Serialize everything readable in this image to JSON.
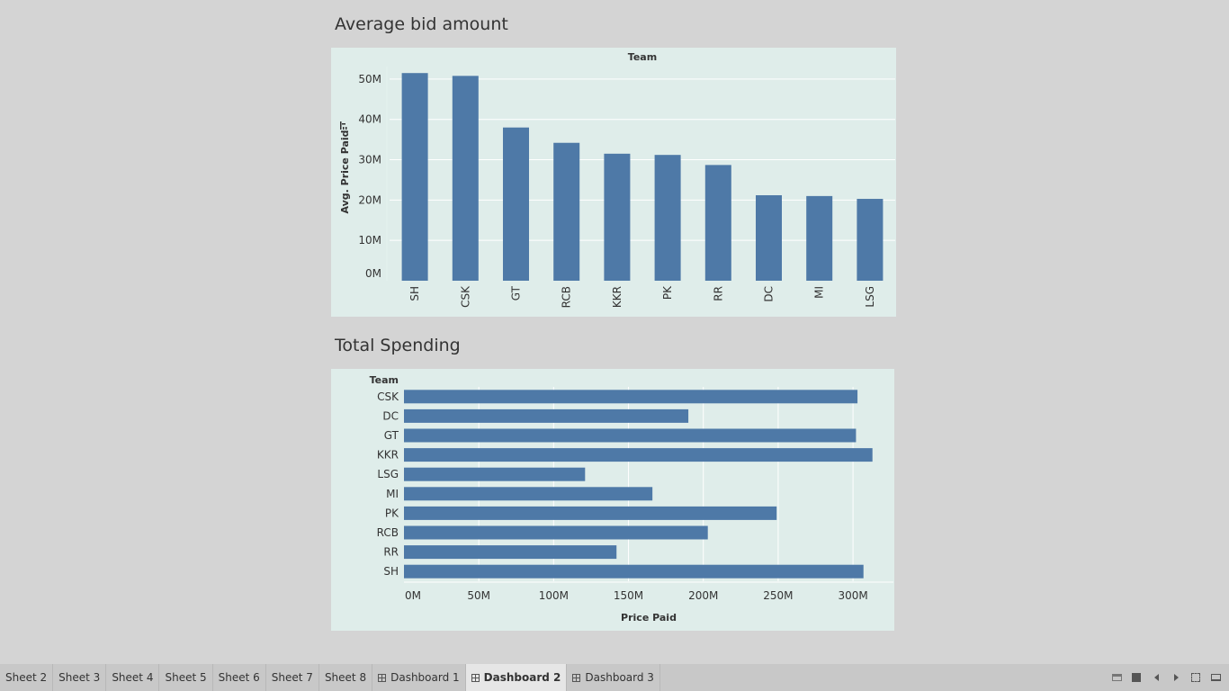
{
  "dashboard": {
    "titles": [
      "Average bid amount",
      "Total Spending"
    ]
  },
  "chart_data": [
    {
      "type": "bar",
      "orientation": "vertical",
      "title": "Average bid amount",
      "header": "Team",
      "ylabel": "Avg. Price Paid",
      "categories": [
        "SH",
        "CSK",
        "GT",
        "RCB",
        "KKR",
        "PK",
        "RR",
        "DC",
        "MI",
        "LSG"
      ],
      "values": [
        51.5,
        50.8,
        38.0,
        34.2,
        31.5,
        31.2,
        28.7,
        21.2,
        21.0,
        20.3
      ],
      "yticks": [
        "0M",
        "10M",
        "20M",
        "30M",
        "40M",
        "50M"
      ],
      "ylim": [
        0,
        54
      ],
      "grid": true,
      "bar_color": "#4e79a7"
    },
    {
      "type": "bar",
      "orientation": "horizontal",
      "title": "Total Spending",
      "header": "Team",
      "xlabel": "Price Paid",
      "categories": [
        "CSK",
        "DC",
        "GT",
        "KKR",
        "LSG",
        "MI",
        "PK",
        "RCB",
        "RR",
        "SH"
      ],
      "values": [
        303,
        190,
        302,
        313,
        121,
        166,
        249,
        203,
        142,
        307
      ],
      "xticks": [
        "0M",
        "50M",
        "100M",
        "150M",
        "200M",
        "250M",
        "300M"
      ],
      "xlim": [
        0,
        327
      ],
      "grid": true,
      "bar_color": "#4e79a7"
    }
  ],
  "tabs": [
    {
      "label": "Sheet 2",
      "type": "sheet",
      "active": false
    },
    {
      "label": "Sheet 3",
      "type": "sheet",
      "active": false
    },
    {
      "label": "Sheet 4",
      "type": "sheet",
      "active": false
    },
    {
      "label": "Sheet 5",
      "type": "sheet",
      "active": false
    },
    {
      "label": "Sheet 6",
      "type": "sheet",
      "active": false
    },
    {
      "label": "Sheet 7",
      "type": "sheet",
      "active": false
    },
    {
      "label": "Sheet 8",
      "type": "sheet",
      "active": false
    },
    {
      "label": "Dashboard 1",
      "type": "dashboard",
      "active": false
    },
    {
      "label": "Dashboard 2",
      "type": "dashboard",
      "active": true
    },
    {
      "label": "Dashboard 3",
      "type": "dashboard",
      "active": false
    }
  ],
  "toolbar": {
    "icons": [
      "show-tabs-icon",
      "show-filmstrip-icon",
      "previous-tab-icon",
      "next-tab-icon",
      "fullscreen-icon",
      "presentation-mode-icon"
    ]
  }
}
